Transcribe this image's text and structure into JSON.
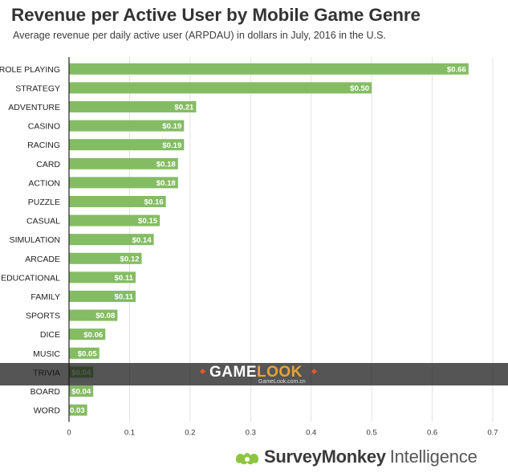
{
  "header": {
    "title": "Revenue per Active User by Mobile Game Genre",
    "subtitle": "Average revenue per daily active user (ARPDAU) in dollars in July, 2016 in the U.S."
  },
  "colors": {
    "bar": "#84bc63",
    "axis": "#222222",
    "grid": "#dcdcdc",
    "watermark_accent": "#e8a33a",
    "brand_logo": "#8cc63f"
  },
  "chart_data": {
    "type": "bar",
    "orientation": "horizontal",
    "categories": [
      "ROLE PLAYING",
      "STRATEGY",
      "ADVENTURE",
      "CASINO",
      "RACING",
      "CARD",
      "ACTION",
      "PUZZLE",
      "CASUAL",
      "SIMULATION",
      "ARCADE",
      "EDUCATIONAL",
      "FAMILY",
      "SPORTS",
      "DICE",
      "MUSIC",
      "TRIVIA",
      "BOARD",
      "WORD"
    ],
    "values": [
      0.66,
      0.5,
      0.21,
      0.19,
      0.19,
      0.18,
      0.18,
      0.16,
      0.15,
      0.14,
      0.12,
      0.11,
      0.11,
      0.08,
      0.06,
      0.05,
      0.04,
      0.04,
      0.03
    ],
    "value_labels": [
      "$0.66",
      "$0.50",
      "$0.21",
      "$0.19",
      "$0.19",
      "$0.18",
      "$0.18",
      "$0.16",
      "$0.15",
      "$0.14",
      "$0.12",
      "$0.11",
      "$0.11",
      "$0.08",
      "$0.06",
      "$0.05",
      "$0.04",
      "$0.04",
      "$0.03"
    ],
    "x_ticks": [
      0,
      0.1,
      0.2,
      0.3,
      0.4,
      0.5,
      0.6,
      0.7
    ],
    "x_tick_labels": [
      "0",
      "0.1",
      "0.2",
      "0.3",
      "0.4",
      "0.5",
      "0.6",
      "0.7"
    ],
    "xlim": [
      0,
      0.7
    ],
    "xlabel": "",
    "ylabel": "",
    "grid": true
  },
  "watermark": {
    "main_prefix": "GAME",
    "main_accent": "LOOK",
    "sub": "GameLook.com.cn"
  },
  "brand": {
    "name": "SurveyMonkey",
    "suffix": "Intelligence",
    "logo_icon": "surveymonkey-logo-icon"
  }
}
